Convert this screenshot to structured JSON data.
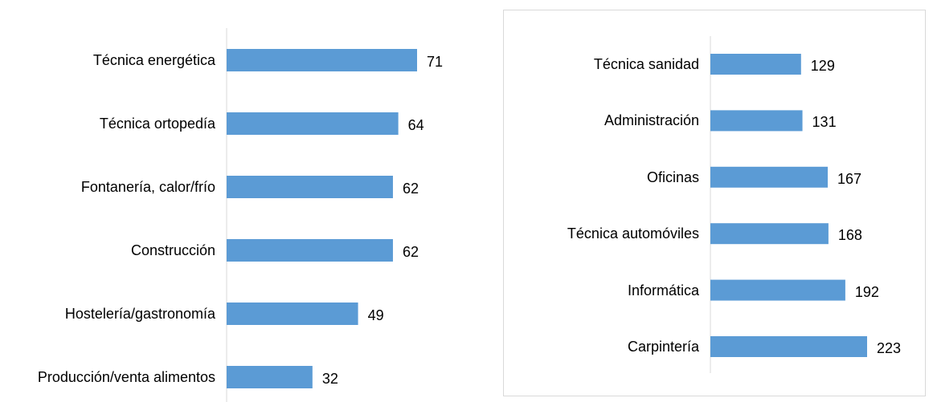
{
  "chart_data": [
    {
      "type": "barh",
      "categories": [
        "Técnica energética",
        "Técnica ortopedía",
        "Fontanería, calor/frío",
        "Construcción",
        "Hostelería/gastronomía",
        "Producción/venta alimentos"
      ],
      "values": [
        71,
        64,
        62,
        62,
        49,
        32
      ],
      "color": "#5b9bd5"
    },
    {
      "type": "barh",
      "categories": [
        "Técnica sanidad",
        "Administración",
        "Oficinas",
        "Técnica automóviles",
        "Informática",
        "Carpintería"
      ],
      "values": [
        129,
        131,
        167,
        168,
        192,
        223
      ],
      "color": "#5b9bd5"
    }
  ]
}
